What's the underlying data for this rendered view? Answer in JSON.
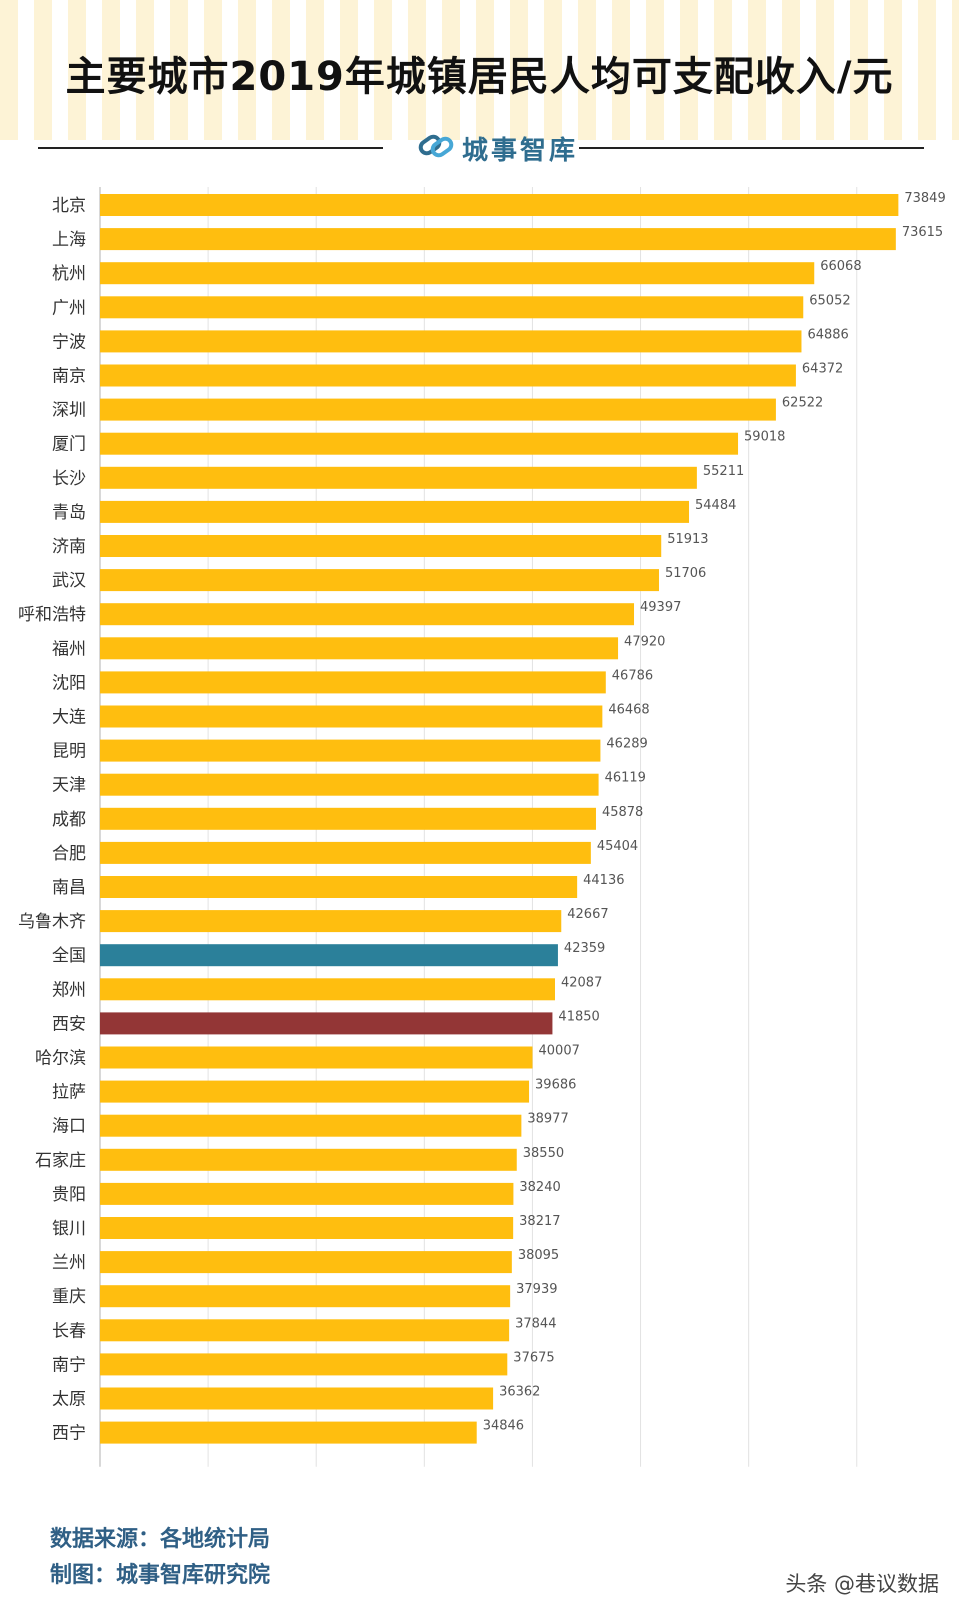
{
  "title": "主要城市2019年城镇居民人均可支配收入/元",
  "brand": {
    "name": "城事智库",
    "logo_icon": "link-logo-icon"
  },
  "colors": {
    "bar": "#FFBE0F",
    "highlight_national": "#2B809A",
    "highlight_xian": "#933636",
    "grid": "#e2e2e2",
    "axis": "#bdbdbd"
  },
  "chart_data": {
    "type": "bar",
    "orientation": "horizontal",
    "title": "主要城市2019年城镇居民人均可支配收入/元",
    "xlabel": "",
    "ylabel": "",
    "xlim": [
      0,
      75000
    ],
    "grid": true,
    "categories": [
      "北京",
      "上海",
      "杭州",
      "广州",
      "宁波",
      "南京",
      "深圳",
      "厦门",
      "长沙",
      "青岛",
      "济南",
      "武汉",
      "呼和浩特",
      "福州",
      "沈阳",
      "大连",
      "昆明",
      "天津",
      "成都",
      "合肥",
      "南昌",
      "乌鲁木齐",
      "全国",
      "郑州",
      "西安",
      "哈尔滨",
      "拉萨",
      "海口",
      "石家庄",
      "贵阳",
      "银川",
      "兰州",
      "重庆",
      "长春",
      "南宁",
      "太原",
      "西宁"
    ],
    "values": [
      73849,
      73615,
      66068,
      65052,
      64886,
      64372,
      62522,
      59018,
      55211,
      54484,
      51913,
      51706,
      49397,
      47920,
      46786,
      46468,
      46289,
      46119,
      45878,
      45404,
      44136,
      42667,
      42359,
      42087,
      41850,
      40007,
      39686,
      38977,
      38550,
      38240,
      38217,
      38095,
      37939,
      37844,
      37675,
      36362,
      34846
    ],
    "highlights": {
      "全国": "highlight_national",
      "西安": "highlight_xian"
    }
  },
  "footer": {
    "source": "数据来源：各地统计局",
    "maker": "制图：城事智库研究院"
  },
  "watermark": "头条 @巷议数据"
}
